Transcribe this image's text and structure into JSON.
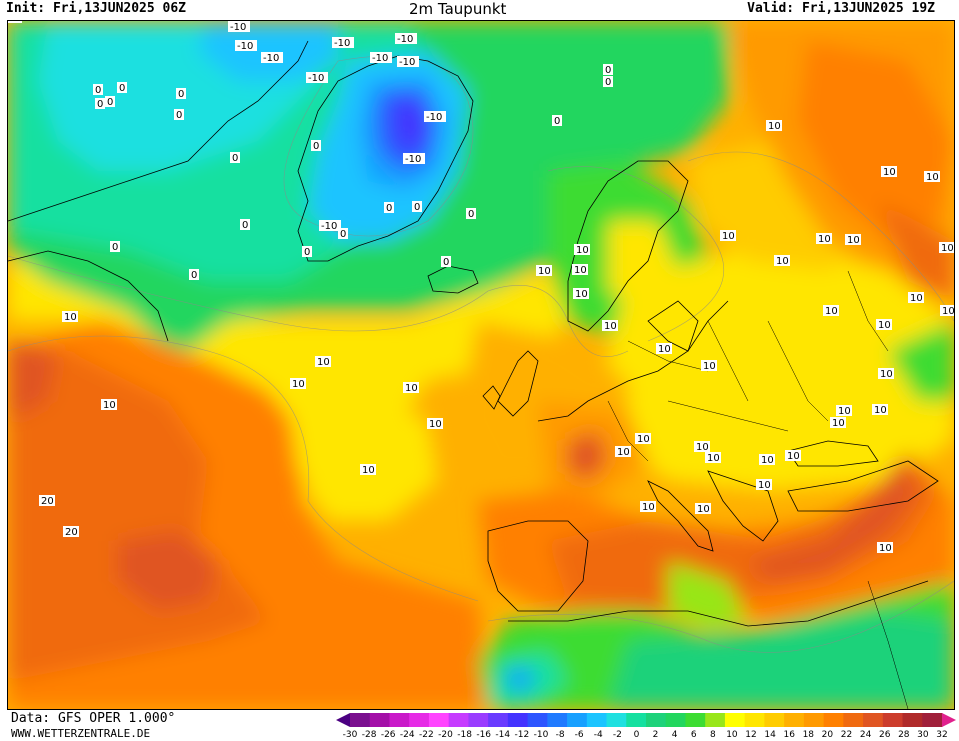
{
  "header": {
    "init": "Init: Fri,13JUN2025 06Z",
    "title": "2m Taupunkt",
    "valid": "Valid: Fri,13JUN2025 19Z"
  },
  "footer": {
    "data_source": "Data: GFS OPER 1.000°",
    "website": "WWW.WETTERZENTRALE.DE"
  },
  "legend": {
    "labels": [
      "-30",
      "-28",
      "-26",
      "-24",
      "-22",
      "-20",
      "-18",
      "-16",
      "-14",
      "-12",
      "-10",
      "-8",
      "-6",
      "-4",
      "-2",
      "0",
      "2",
      "4",
      "6",
      "8",
      "10",
      "12",
      "14",
      "16",
      "18",
      "20",
      "22",
      "24",
      "26",
      "28",
      "30",
      "32"
    ],
    "colors": [
      "#4b0082",
      "#7a0f8f",
      "#a30fa8",
      "#c919c9",
      "#e62be6",
      "#ff44ff",
      "#c63bff",
      "#9a3cff",
      "#6a3bff",
      "#4433ff",
      "#2d55ff",
      "#1f7aff",
      "#18a0ff",
      "#1cc4ff",
      "#1fe0e0",
      "#15e0a0",
      "#1ed27a",
      "#22d65e",
      "#3cdc32",
      "#98e619",
      "#ffff00",
      "#ffe600",
      "#ffcc00",
      "#ffb000",
      "#ff9a00",
      "#ff8000",
      "#f06a10",
      "#e05522",
      "#cc3c2c",
      "#b02a2a",
      "#a01f3a",
      "#e0208c"
    ]
  },
  "contour_labels": [
    "-10",
    "-10",
    "-10",
    "-10",
    "-10",
    "-10",
    "-10",
    "-10",
    "-10",
    "-10",
    "-10",
    "0",
    "0",
    "0",
    "0",
    "0",
    "0",
    "0",
    "0",
    "0",
    "0",
    "0",
    "0",
    "0",
    "0",
    "0",
    "0",
    "0",
    "0",
    "0",
    "0",
    "10",
    "10",
    "10",
    "10",
    "10",
    "10",
    "10",
    "10",
    "10",
    "10",
    "10",
    "10",
    "10",
    "10",
    "10",
    "10",
    "10",
    "10",
    "10",
    "10",
    "10",
    "10",
    "10",
    "10",
    "10",
    "10",
    "10",
    "10",
    "10",
    "10",
    "10",
    "10",
    "10",
    "10",
    "10",
    "10",
    "10",
    "10",
    "10",
    "10",
    "20",
    "20",
    "20"
  ]
}
